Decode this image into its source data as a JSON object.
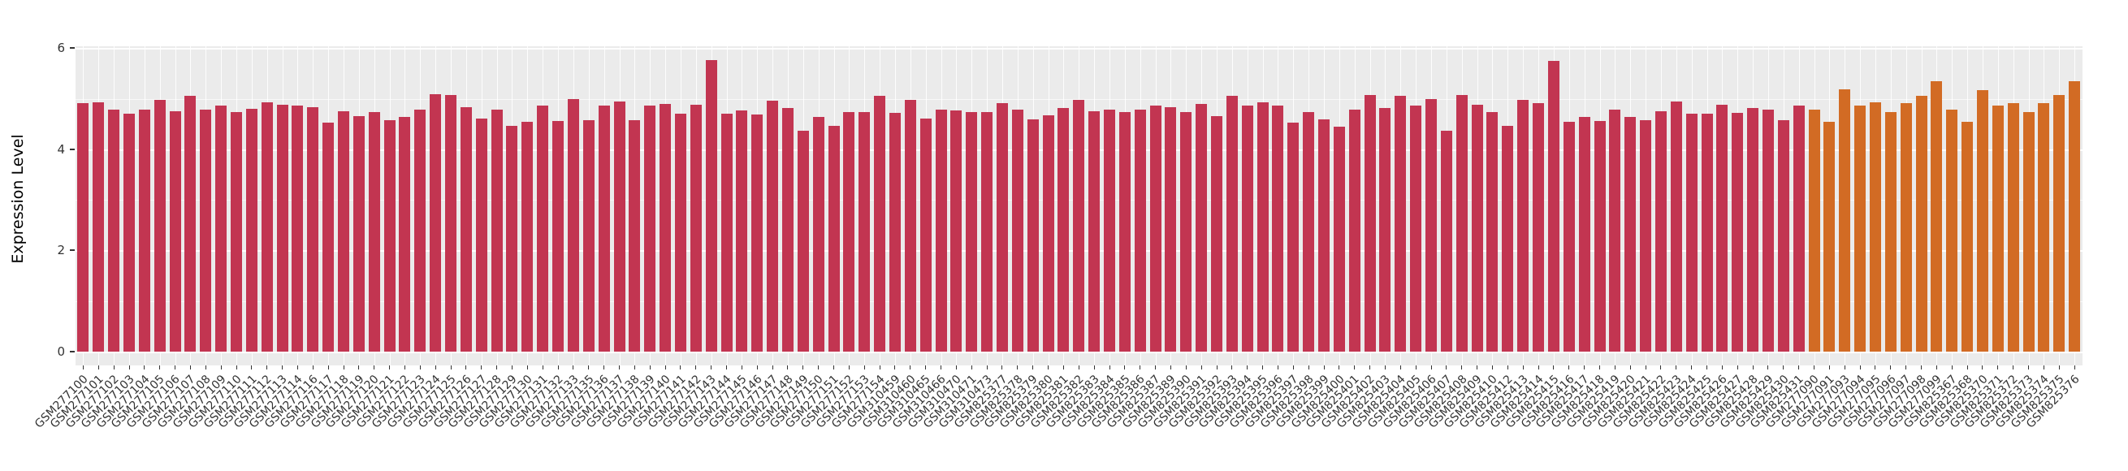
{
  "figure": {
    "ylabel": "Expression Level",
    "background_color": "#FFFFFF",
    "panel_background_color": "#EBEBEB",
    "grid_color": "#FFFFFF",
    "tick_color": "#333333"
  },
  "chart_data": {
    "type": "bar",
    "title": "",
    "xlabel": "",
    "ylabel": "Expression Level",
    "ylim": [
      0,
      6
    ],
    "yticks": [
      0,
      2,
      4,
      6
    ],
    "grid": "on",
    "legend": "none",
    "x_tick_rotation_deg": 45,
    "bar_color_primary": "#C23551",
    "bar_color_secondary": "#D26B24",
    "secondary_start_index": 113,
    "categories": [
      "GSM277100",
      "GSM277101",
      "GSM277102",
      "GSM277103",
      "GSM277104",
      "GSM277105",
      "GSM277106",
      "GSM277107",
      "GSM277108",
      "GSM277109",
      "GSM277110",
      "GSM277111",
      "GSM277112",
      "GSM277113",
      "GSM277114",
      "GSM277116",
      "GSM277117",
      "GSM277118",
      "GSM277119",
      "GSM277120",
      "GSM277121",
      "GSM277122",
      "GSM277123",
      "GSM277124",
      "GSM277125",
      "GSM277126",
      "GSM277127",
      "GSM277128",
      "GSM277129",
      "GSM277130",
      "GSM277131",
      "GSM277132",
      "GSM277133",
      "GSM277135",
      "GSM277136",
      "GSM277137",
      "GSM277138",
      "GSM277139",
      "GSM277140",
      "GSM277141",
      "GSM277142",
      "GSM277143",
      "GSM277144",
      "GSM277145",
      "GSM277146",
      "GSM277147",
      "GSM277148",
      "GSM277149",
      "GSM277150",
      "GSM277151",
      "GSM277152",
      "GSM277153",
      "GSM277154",
      "GSM310459",
      "GSM310460",
      "GSM310465",
      "GSM310466",
      "GSM310470",
      "GSM310471",
      "GSM310473",
      "GSM825377",
      "GSM825378",
      "GSM825379",
      "GSM825380",
      "GSM825381",
      "GSM825382",
      "GSM825383",
      "GSM825384",
      "GSM825385",
      "GSM825386",
      "GSM825387",
      "GSM825389",
      "GSM825390",
      "GSM825391",
      "GSM825392",
      "GSM825393",
      "GSM825394",
      "GSM825395",
      "GSM825396",
      "GSM825397",
      "GSM825398",
      "GSM825399",
      "GSM825400",
      "GSM825401",
      "GSM825402",
      "GSM825403",
      "GSM825404",
      "GSM825405",
      "GSM825406",
      "GSM825407",
      "GSM825408",
      "GSM825409",
      "GSM825410",
      "GSM825412",
      "GSM825413",
      "GSM825414",
      "GSM825415",
      "GSM825416",
      "GSM825417",
      "GSM825418",
      "GSM825419",
      "GSM825420",
      "GSM825421",
      "GSM825422",
      "GSM825423",
      "GSM825424",
      "GSM825425",
      "GSM825426",
      "GSM825427",
      "GSM825428",
      "GSM825429",
      "GSM825430",
      "GSM825431",
      "GSM277090",
      "GSM277091",
      "GSM277093",
      "GSM277094",
      "GSM277095",
      "GSM277096",
      "GSM277097",
      "GSM277098",
      "GSM277099",
      "GSM825367",
      "GSM825368",
      "GSM825370",
      "GSM825371",
      "GSM825372",
      "GSM825373",
      "GSM825374",
      "GSM825375",
      "GSM825376"
    ],
    "values": [
      4.91,
      4.93,
      4.79,
      4.7,
      4.79,
      4.97,
      4.76,
      5.06,
      4.79,
      4.86,
      4.74,
      4.8,
      4.93,
      4.88,
      4.86,
      4.84,
      4.53,
      4.76,
      4.66,
      4.74,
      4.58,
      4.64,
      4.78,
      5.09,
      5.07,
      4.83,
      4.61,
      4.79,
      4.46,
      4.54,
      4.86,
      4.56,
      5.0,
      4.58,
      4.87,
      4.95,
      4.58,
      4.86,
      4.9,
      4.7,
      4.88,
      5.76,
      4.7,
      4.77,
      4.69,
      4.96,
      4.82,
      4.36,
      4.64,
      4.46,
      4.73,
      4.74,
      5.06,
      4.72,
      4.98,
      4.61,
      4.78,
      4.77,
      4.73,
      4.74,
      4.92,
      4.78,
      4.59,
      4.68,
      4.81,
      4.97,
      4.76,
      4.78,
      4.73,
      4.78,
      4.86,
      4.84,
      4.74,
      4.9,
      4.66,
      5.06,
      4.86,
      4.93,
      4.87,
      4.52,
      4.73,
      4.59,
      4.45,
      4.78,
      5.08,
      4.81,
      5.05,
      4.86,
      5.0,
      4.37,
      5.07,
      4.88,
      4.74,
      4.47,
      4.97,
      4.91,
      5.75,
      4.54,
      4.64,
      4.56,
      4.78,
      4.64,
      4.58,
      4.76,
      4.95,
      4.7,
      4.71,
      4.88,
      4.72,
      4.81,
      4.79,
      4.57,
      4.86,
      4.78,
      4.55,
      5.18,
      4.86,
      4.93,
      4.73,
      4.91,
      5.06,
      5.35,
      4.79,
      4.55,
      5.17,
      4.86,
      4.92,
      4.73,
      4.91,
      5.07,
      5.35
    ]
  }
}
